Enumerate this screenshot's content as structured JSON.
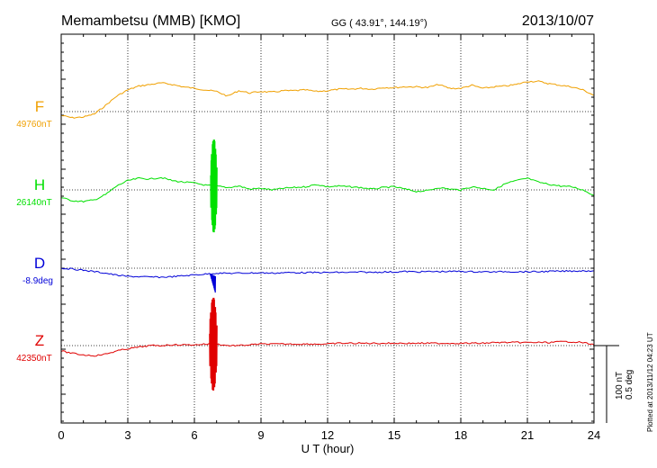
{
  "header": {
    "station": "Memambetsu (MMB)  [KMO]",
    "coords": "GG ( 43.91°, 144.19°)",
    "date": "2013/10/07"
  },
  "side_note": "Plotted at 2013/11/12 04:23 UT",
  "scale_bar": {
    "nT_label": "100 nT",
    "deg_label": "0.5 deg"
  },
  "colors": {
    "F": "#f0a000",
    "H": "#00e000",
    "D": "#0000d8",
    "Z": "#e00000",
    "axis": "#000000"
  },
  "chart_data": {
    "type": "line",
    "xlabel": "U T (hour)",
    "xlim": [
      0,
      24
    ],
    "xticks": [
      0,
      3,
      6,
      9,
      12,
      15,
      18,
      21,
      24
    ],
    "xtick_labels": [
      "0",
      "3",
      "6",
      "9",
      "12",
      "15",
      "18",
      "21",
      "24"
    ],
    "grid": true,
    "units_per_scalebar": {
      "nT": 100,
      "deg": 0.5
    },
    "series": [
      {
        "name": "F",
        "label": "F",
        "baseline_label": "49760nT",
        "baseline": 49760,
        "unit": "nT",
        "x": [
          0,
          0.5,
          1,
          1.5,
          2,
          2.5,
          3,
          3.5,
          4,
          4.5,
          5,
          5.5,
          6,
          6.5,
          7,
          7.5,
          8,
          8.5,
          9,
          9.5,
          10,
          10.5,
          11,
          11.5,
          12,
          12.5,
          13,
          13.5,
          14,
          14.5,
          15,
          15.5,
          16,
          16.5,
          17,
          17.5,
          18,
          18.5,
          19,
          19.5,
          20,
          20.5,
          21,
          21.5,
          22,
          22.5,
          23,
          23.5,
          24
        ],
        "values": [
          49755,
          49752,
          49753,
          49757,
          49768,
          49780,
          49788,
          49793,
          49795,
          49797,
          49795,
          49792,
          49790,
          49788,
          49786,
          49780,
          49787,
          49784,
          49786,
          49785,
          49787,
          49787,
          49788,
          49786,
          49787,
          49789,
          49789,
          49790,
          49789,
          49791,
          49791,
          49792,
          49792,
          49791,
          49795,
          49790,
          49790,
          49794,
          49790,
          49792,
          49793,
          49795,
          49799,
          49799,
          49796,
          49794,
          49792,
          49788,
          49781
        ]
      },
      {
        "name": "H",
        "label": "H",
        "baseline_label": "26140nT",
        "baseline": 26140,
        "unit": "nT",
        "x": [
          0,
          0.5,
          1,
          1.5,
          2,
          2.5,
          3,
          3.5,
          4,
          4.5,
          5,
          5.5,
          6,
          6.5,
          7,
          7.5,
          8,
          8.5,
          9,
          9.5,
          10,
          10.5,
          11,
          11.5,
          12,
          12.5,
          13,
          13.5,
          14,
          14.5,
          15,
          15.5,
          16,
          16.5,
          17,
          17.5,
          18,
          18.5,
          19,
          19.5,
          20,
          20.5,
          21,
          21.5,
          22,
          22.5,
          23,
          23.5,
          24
        ],
        "values": [
          26130,
          26126,
          26125,
          26127,
          26134,
          26145,
          26152,
          26155,
          26154,
          26156,
          26152,
          26150,
          26149,
          26146,
          26145,
          26143,
          26145,
          26141,
          26142,
          26140,
          26142,
          26143,
          26144,
          26147,
          26144,
          26145,
          26144,
          26143,
          26141,
          26143,
          26144,
          26141,
          26138,
          26139,
          26143,
          26141,
          26140,
          26144,
          26142,
          26140,
          26148,
          26152,
          26155,
          26150,
          26147,
          26145,
          26144,
          26140,
          26133
        ]
      },
      {
        "name": "D",
        "label": "D",
        "baseline_label": "-8.9deg",
        "baseline": -8.9,
        "unit": "deg",
        "x": [
          0,
          0.5,
          1,
          1.5,
          2,
          2.5,
          3,
          3.5,
          4,
          4.5,
          5,
          5.5,
          6,
          6.5,
          7,
          7.5,
          8,
          8.5,
          9,
          9.5,
          10,
          10.5,
          11,
          11.5,
          12,
          12.5,
          13,
          13.5,
          14,
          14.5,
          15,
          15.5,
          16,
          16.5,
          17,
          17.5,
          18,
          18.5,
          19,
          19.5,
          20,
          20.5,
          21,
          21.5,
          22,
          22.5,
          23,
          23.5,
          24
        ],
        "values": [
          -8.9,
          -8.905,
          -8.913,
          -8.922,
          -8.932,
          -8.945,
          -8.953,
          -8.955,
          -8.957,
          -8.958,
          -8.955,
          -8.949,
          -8.943,
          -8.938,
          -8.932,
          -8.933,
          -8.932,
          -8.931,
          -8.93,
          -8.932,
          -8.929,
          -8.928,
          -8.929,
          -8.928,
          -8.928,
          -8.927,
          -8.927,
          -8.925,
          -8.927,
          -8.924,
          -8.925,
          -8.921,
          -8.924,
          -8.922,
          -8.922,
          -8.921,
          -8.92,
          -8.923,
          -8.923,
          -8.924,
          -8.922,
          -8.923,
          -8.923,
          -8.923,
          -8.92,
          -8.92,
          -8.918,
          -8.917,
          -8.917
        ]
      },
      {
        "name": "Z",
        "label": "Z",
        "baseline_label": "42350nT",
        "baseline": 42350,
        "unit": "nT",
        "x": [
          0,
          0.5,
          1,
          1.5,
          2,
          2.5,
          3,
          3.5,
          4,
          4.5,
          5,
          5.5,
          6,
          6.5,
          7,
          7.5,
          8,
          8.5,
          9,
          9.5,
          10,
          10.5,
          11,
          11.5,
          12,
          12.5,
          13,
          13.5,
          14,
          14.5,
          15,
          15.5,
          16,
          16.5,
          17,
          17.5,
          18,
          18.5,
          19,
          19.5,
          20,
          20.5,
          21,
          21.5,
          22,
          22.5,
          23,
          23.5,
          24
        ],
        "values": [
          42343,
          42340,
          42338,
          42337,
          42339,
          42343,
          42346,
          42348,
          42350,
          42350,
          42351,
          42351,
          42351,
          42352,
          42352,
          42350,
          42350,
          42351,
          42352,
          42352,
          42352,
          42352,
          42352,
          42352,
          42352,
          42353,
          42353,
          42353,
          42353,
          42353,
          42353,
          42353,
          42353,
          42353,
          42353,
          42353,
          42353,
          42353,
          42353,
          42354,
          42354,
          42354,
          42354,
          42354,
          42354,
          42355,
          42355,
          42354,
          42351
        ]
      }
    ],
    "annotations": [
      {
        "series": "H",
        "x_start": 6.75,
        "x_end": 7.0,
        "type": "pulsation",
        "amplitude_nT": 60
      },
      {
        "series": "D",
        "x_start": 6.7,
        "x_end": 6.95,
        "type": "spike",
        "amplitude_deg": 0.13
      },
      {
        "series": "Z",
        "x_start": 6.7,
        "x_end": 7.0,
        "type": "pulsation",
        "amplitude_nT": 60
      }
    ]
  }
}
